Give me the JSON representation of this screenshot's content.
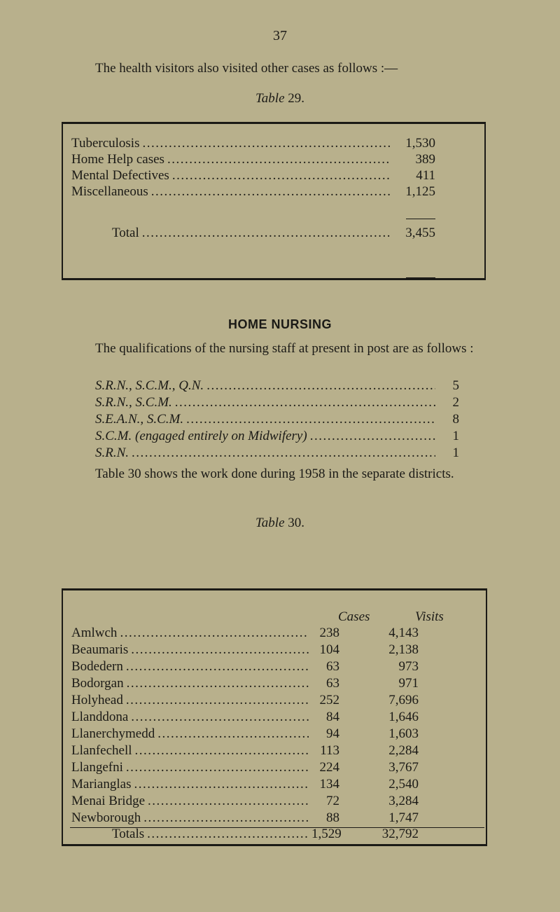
{
  "page_number": "37",
  "intro": "The health visitors also visited other cases as follows :—",
  "table29": {
    "caption_word": "Table",
    "caption_num": "29.",
    "rows": [
      {
        "label": "Tuberculosis",
        "value": "1,530"
      },
      {
        "label": "Home Help cases",
        "value": "389"
      },
      {
        "label": "Mental Defectives",
        "value": "411"
      },
      {
        "label": "Miscellaneous",
        "value": "1,125"
      }
    ],
    "total_label": "Total",
    "total_value": "3,455"
  },
  "home_nursing": {
    "heading": "HOME NURSING",
    "paragraph": "The qualifications of the nursing staff at present in post are as follows :",
    "qualifications": [
      {
        "label": "S.R.N., S.C.M., Q.N.",
        "value": "5"
      },
      {
        "label": "S.R.N., S.C.M.",
        "value": "2"
      },
      {
        "label": "S.E.A.N., S.C.M.",
        "value": "8"
      },
      {
        "label": "S.C.M. (engaged entirely on Midwifery)",
        "value": "1"
      },
      {
        "label": "S.R.N.",
        "value": "1"
      }
    ],
    "paragraph2": "Table 30 shows the work done during 1958 in the separate districts."
  },
  "table30": {
    "caption_word": "Table",
    "caption_num": "30.",
    "col_cases": "Cases",
    "col_visits": "Visits",
    "rows": [
      {
        "district": "Amlwch",
        "cases": "238",
        "visits": "4,143"
      },
      {
        "district": "Beaumaris",
        "cases": "104",
        "visits": "2,138"
      },
      {
        "district": "Bodedern",
        "cases": "63",
        "visits": "973"
      },
      {
        "district": "Bodorgan",
        "cases": "63",
        "visits": "971"
      },
      {
        "district": "Holyhead",
        "cases": "252",
        "visits": "7,696"
      },
      {
        "district": "Llanddona",
        "cases": "84",
        "visits": "1,646"
      },
      {
        "district": "Llanerchymedd",
        "cases": "94",
        "visits": "1,603"
      },
      {
        "district": "Llanfechell",
        "cases": "113",
        "visits": "2,284"
      },
      {
        "district": "Llangefni",
        "cases": "224",
        "visits": "3,767"
      },
      {
        "district": "Marianglas",
        "cases": "134",
        "visits": "2,540"
      },
      {
        "district": "Menai Bridge",
        "cases": "72",
        "visits": "3,284"
      },
      {
        "district": "Newborough",
        "cases": "88",
        "visits": "1,747"
      }
    ],
    "totals_label": "Totals",
    "totals_cases": "1,529",
    "totals_visits": "32,792"
  }
}
